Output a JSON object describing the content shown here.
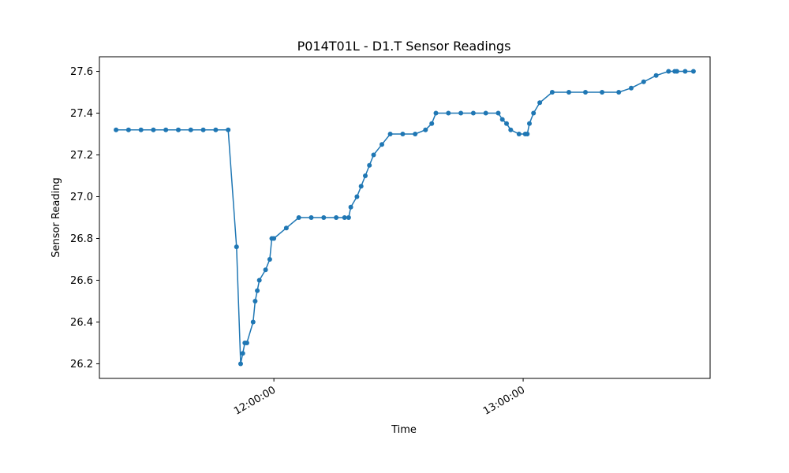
{
  "chart_data": {
    "type": "line",
    "title": "P014T01L - D1.T Sensor Readings",
    "xlabel": "Time",
    "ylabel": "Sensor Reading",
    "x_range": [
      "11:18:00",
      "13:45:00"
    ],
    "ylim": [
      26.13,
      27.67
    ],
    "x_ticks": [
      {
        "label": "12:00:00",
        "value": "12:00:00"
      },
      {
        "label": "13:00:00",
        "value": "13:00:00"
      }
    ],
    "y_ticks": [
      "26.2",
      "26.4",
      "26.6",
      "26.8",
      "27.0",
      "27.2",
      "27.4",
      "27.6"
    ],
    "grid": false,
    "legend": "none",
    "marker": "circle",
    "color": "#1f77b4",
    "series": [
      {
        "x": [
          "11:22:00",
          "11:25:00",
          "11:28:00",
          "11:31:00",
          "11:34:00",
          "11:37:00",
          "11:40:00",
          "11:43:00",
          "11:46:00",
          "11:49:00",
          "11:51:00",
          "11:52:00",
          "11:52:30",
          "11:53:00",
          "11:53:30",
          "11:55:00",
          "11:55:30",
          "11:56:00",
          "11:56:30",
          "11:58:00",
          "11:59:00",
          "11:59:30",
          "12:00:00",
          "12:03:00",
          "12:06:00",
          "12:09:00",
          "12:12:00",
          "12:15:00",
          "12:17:00",
          "12:18:00",
          "12:18:30",
          "12:20:00",
          "12:21:00",
          "12:22:00",
          "12:23:00",
          "12:24:00",
          "12:26:00",
          "12:28:00",
          "12:31:00",
          "12:34:00",
          "12:36:30",
          "12:38:00",
          "12:39:00",
          "12:42:00",
          "12:45:00",
          "12:48:00",
          "12:51:00",
          "12:54:00",
          "12:55:00",
          "12:56:00",
          "12:57:00",
          "12:59:00",
          "13:00:30",
          "13:01:00",
          "13:01:30",
          "13:02:30",
          "13:04:00",
          "13:07:00",
          "13:11:00",
          "13:15:00",
          "13:19:00",
          "13:23:00",
          "13:26:00",
          "13:29:00",
          "13:32:00",
          "13:35:00",
          "13:36:30",
          "13:37:00",
          "13:39:00",
          "13:41:00"
        ],
        "values": [
          27.32,
          27.32,
          27.32,
          27.32,
          27.32,
          27.32,
          27.32,
          27.32,
          27.32,
          27.32,
          26.76,
          26.2,
          26.25,
          26.3,
          26.3,
          26.4,
          26.5,
          26.55,
          26.6,
          26.65,
          26.7,
          26.8,
          26.8,
          26.85,
          26.9,
          26.9,
          26.9,
          26.9,
          26.9,
          26.9,
          26.95,
          27.0,
          27.05,
          27.1,
          27.15,
          27.2,
          27.25,
          27.3,
          27.3,
          27.3,
          27.32,
          27.35,
          27.4,
          27.4,
          27.4,
          27.4,
          27.4,
          27.4,
          27.37,
          27.35,
          27.32,
          27.3,
          27.3,
          27.3,
          27.35,
          27.4,
          27.45,
          27.5,
          27.5,
          27.5,
          27.5,
          27.5,
          27.52,
          27.55,
          27.58,
          27.6,
          27.6,
          27.6,
          27.6,
          27.6
        ]
      }
    ]
  }
}
